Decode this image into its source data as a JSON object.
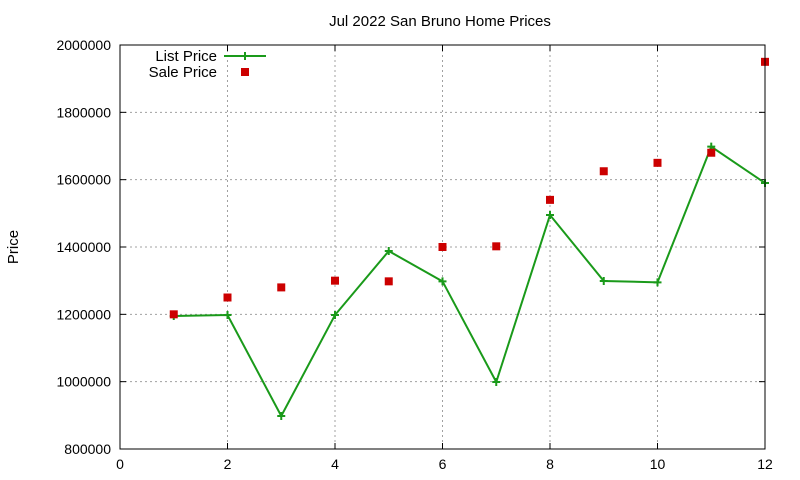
{
  "chart_data": {
    "type": "line",
    "title": "Jul 2022 San Bruno Home Prices",
    "xlabel": "",
    "ylabel": "Price",
    "xlim": [
      0,
      12
    ],
    "ylim": [
      800000,
      2000000
    ],
    "x_ticks": [
      0,
      2,
      4,
      6,
      8,
      10,
      12
    ],
    "y_ticks": [
      800000,
      1000000,
      1200000,
      1400000,
      1600000,
      1800000,
      2000000
    ],
    "grid": true,
    "legend_position": "top-left",
    "series": [
      {
        "name": "List Price",
        "style": "line-with-plus-markers",
        "color": "#1a9a1a",
        "x": [
          1,
          2,
          3,
          4,
          5,
          6,
          7,
          8,
          9,
          10,
          11,
          12
        ],
        "values": [
          1195000,
          1198000,
          898000,
          1198000,
          1388000,
          1298000,
          999000,
          1495000,
          1299000,
          1295000,
          1698000,
          1590000
        ]
      },
      {
        "name": "Sale Price",
        "style": "square-markers",
        "color": "#cc0000",
        "x": [
          1,
          2,
          3,
          4,
          5,
          6,
          7,
          8,
          9,
          10,
          11,
          12
        ],
        "values": [
          1200000,
          1250000,
          1280000,
          1300000,
          1298000,
          1400000,
          1402000,
          1540000,
          1625000,
          1650000,
          1680000,
          1950000
        ]
      }
    ]
  }
}
